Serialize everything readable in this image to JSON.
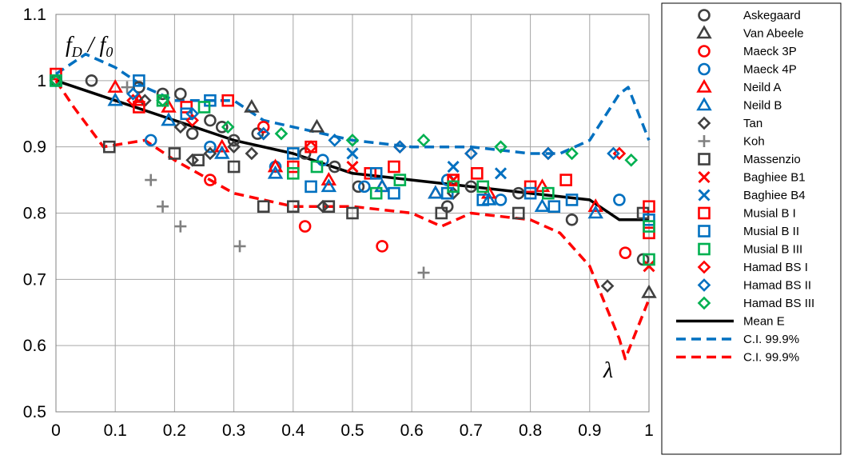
{
  "chart_data": {
    "type": "scatter",
    "xlim": [
      0,
      1
    ],
    "ylim": [
      0.5,
      1.1
    ],
    "x_ticks": [
      "0",
      "0.1",
      "0.2",
      "0.3",
      "0.4",
      "0.5",
      "0.6",
      "0.7",
      "0.8",
      "0.9",
      "1"
    ],
    "y_ticks": [
      "0.5",
      "0.6",
      "0.7",
      "0.8",
      "0.9",
      "1",
      "1.1"
    ],
    "grid": true,
    "legend_position": "right",
    "annotations": {
      "ylabel_left": "f",
      "ylabel_sub1": "D",
      "ylabel_mid": " / f",
      "ylabel_sub2": "0",
      "xlabel": "λ"
    },
    "series": [
      {
        "name": "Askegaard",
        "marker": "circle",
        "color": "#404040",
        "points": [
          [
            0,
            1.0
          ],
          [
            0.06,
            1.0
          ],
          [
            0.14,
            0.99
          ],
          [
            0.18,
            0.98
          ],
          [
            0.21,
            0.98
          ],
          [
            0.23,
            0.92
          ],
          [
            0.26,
            0.94
          ],
          [
            0.28,
            0.93
          ],
          [
            0.3,
            0.91
          ],
          [
            0.34,
            0.92
          ],
          [
            0.42,
            0.89
          ],
          [
            0.47,
            0.87
          ],
          [
            0.51,
            0.84
          ],
          [
            0.66,
            0.81
          ],
          [
            0.7,
            0.84
          ],
          [
            0.78,
            0.83
          ],
          [
            0.87,
            0.79
          ],
          [
            0.99,
            0.73
          ]
        ]
      },
      {
        "name": "Van Abeele",
        "marker": "triangle",
        "color": "#404040",
        "points": [
          [
            0.33,
            0.96
          ],
          [
            0.44,
            0.93
          ],
          [
            1.0,
            0.68
          ]
        ]
      },
      {
        "name": "Maeck 3P",
        "marker": "circle",
        "color": "#ff0000",
        "points": [
          [
            0.26,
            0.85
          ],
          [
            0.35,
            0.93
          ],
          [
            0.42,
            0.78
          ],
          [
            0.55,
            0.75
          ],
          [
            0.96,
            0.74
          ]
        ]
      },
      {
        "name": "Maeck 4P",
        "marker": "circle",
        "color": "#0070c0",
        "points": [
          [
            0.16,
            0.91
          ],
          [
            0.26,
            0.9
          ],
          [
            0.37,
            0.87
          ],
          [
            0.45,
            0.88
          ],
          [
            0.52,
            0.84
          ],
          [
            0.66,
            0.85
          ],
          [
            0.75,
            0.82
          ],
          [
            0.95,
            0.82
          ]
        ]
      },
      {
        "name": "Neild A",
        "marker": "triangle",
        "color": "#ff0000",
        "points": [
          [
            0.1,
            0.99
          ],
          [
            0.14,
            0.97
          ],
          [
            0.19,
            0.96
          ],
          [
            0.28,
            0.9
          ],
          [
            0.37,
            0.87
          ],
          [
            0.46,
            0.85
          ],
          [
            0.55,
            0.84
          ],
          [
            0.64,
            0.83
          ],
          [
            0.73,
            0.83
          ],
          [
            0.82,
            0.84
          ],
          [
            0.91,
            0.81
          ]
        ]
      },
      {
        "name": "Neild B",
        "marker": "triangle",
        "color": "#0070c0",
        "points": [
          [
            0.1,
            0.97
          ],
          [
            0.19,
            0.94
          ],
          [
            0.28,
            0.89
          ],
          [
            0.37,
            0.86
          ],
          [
            0.46,
            0.84
          ],
          [
            0.55,
            0.84
          ],
          [
            0.64,
            0.83
          ],
          [
            0.73,
            0.82
          ],
          [
            0.82,
            0.81
          ],
          [
            0.91,
            0.8
          ]
        ]
      },
      {
        "name": "Tan",
        "marker": "diamond",
        "color": "#404040",
        "points": [
          [
            0.15,
            0.97
          ],
          [
            0.21,
            0.93
          ],
          [
            0.23,
            0.88
          ],
          [
            0.26,
            0.89
          ],
          [
            0.3,
            0.9
          ],
          [
            0.33,
            0.89
          ],
          [
            0.45,
            0.81
          ],
          [
            0.67,
            0.83
          ],
          [
            0.93,
            0.69
          ]
        ]
      },
      {
        "name": "Koh",
        "marker": "plus",
        "color": "#808080",
        "points": [
          [
            0.12,
            0.99
          ],
          [
            0.16,
            0.85
          ],
          [
            0.18,
            0.81
          ],
          [
            0.21,
            0.78
          ],
          [
            0.31,
            0.75
          ],
          [
            0.62,
            0.71
          ]
        ]
      },
      {
        "name": "Massenzio",
        "marker": "square",
        "color": "#404040",
        "points": [
          [
            0.09,
            0.9
          ],
          [
            0.2,
            0.89
          ],
          [
            0.24,
            0.88
          ],
          [
            0.3,
            0.87
          ],
          [
            0.35,
            0.81
          ],
          [
            0.4,
            0.81
          ],
          [
            0.46,
            0.81
          ],
          [
            0.5,
            0.8
          ],
          [
            0.65,
            0.8
          ],
          [
            0.78,
            0.8
          ],
          [
            0.99,
            0.8
          ]
        ]
      },
      {
        "name": "Baghiee B1",
        "marker": "x",
        "color": "#ff0000",
        "points": [
          [
            0.5,
            0.87
          ],
          [
            0.67,
            0.85
          ],
          [
            1.0,
            0.72
          ]
        ]
      },
      {
        "name": "Baghiee B4",
        "marker": "x",
        "color": "#0070c0",
        "points": [
          [
            0.5,
            0.89
          ],
          [
            0.67,
            0.87
          ],
          [
            0.75,
            0.86
          ]
        ]
      },
      {
        "name": "Musial B I",
        "marker": "square",
        "color": "#ff0000",
        "points": [
          [
            0.0,
            1.01
          ],
          [
            0.14,
            0.96
          ],
          [
            0.22,
            0.96
          ],
          [
            0.29,
            0.97
          ],
          [
            0.4,
            0.87
          ],
          [
            0.43,
            0.9
          ],
          [
            0.53,
            0.86
          ],
          [
            0.57,
            0.87
          ],
          [
            0.67,
            0.85
          ],
          [
            0.71,
            0.86
          ],
          [
            0.8,
            0.84
          ],
          [
            0.86,
            0.85
          ],
          [
            1.0,
            0.77
          ],
          [
            1.0,
            0.81
          ]
        ]
      },
      {
        "name": "Musial B II",
        "marker": "square",
        "color": "#0070c0",
        "points": [
          [
            0.0,
            1.0
          ],
          [
            0.14,
            1.0
          ],
          [
            0.22,
            0.95
          ],
          [
            0.26,
            0.97
          ],
          [
            0.4,
            0.89
          ],
          [
            0.43,
            0.84
          ],
          [
            0.54,
            0.86
          ],
          [
            0.57,
            0.83
          ],
          [
            0.66,
            0.83
          ],
          [
            0.72,
            0.82
          ],
          [
            0.8,
            0.83
          ],
          [
            0.84,
            0.81
          ],
          [
            0.87,
            0.82
          ],
          [
            1.0,
            0.79
          ]
        ]
      },
      {
        "name": "Musial B III",
        "marker": "square",
        "color": "#00b050",
        "points": [
          [
            0.0,
            1.0
          ],
          [
            0.18,
            0.97
          ],
          [
            0.25,
            0.96
          ],
          [
            0.4,
            0.86
          ],
          [
            0.44,
            0.87
          ],
          [
            0.54,
            0.83
          ],
          [
            0.58,
            0.85
          ],
          [
            0.67,
            0.84
          ],
          [
            0.72,
            0.84
          ],
          [
            0.83,
            0.83
          ],
          [
            1.0,
            0.73
          ],
          [
            1.0,
            0.78
          ]
        ]
      },
      {
        "name": "Hamad BS I",
        "marker": "diamond",
        "color": "#ff0000",
        "points": [
          [
            0.0,
            1.0
          ],
          [
            0.13,
            0.97
          ],
          [
            0.23,
            0.94
          ],
          [
            0.35,
            0.92
          ],
          [
            0.43,
            0.9
          ],
          [
            0.58,
            0.9
          ],
          [
            0.7,
            0.89
          ],
          [
            0.83,
            0.89
          ],
          [
            0.95,
            0.89
          ]
        ]
      },
      {
        "name": "Hamad BS II",
        "marker": "diamond",
        "color": "#0070c0",
        "points": [
          [
            0.0,
            1.0
          ],
          [
            0.13,
            0.98
          ],
          [
            0.23,
            0.95
          ],
          [
            0.35,
            0.92
          ],
          [
            0.47,
            0.91
          ],
          [
            0.58,
            0.9
          ],
          [
            0.7,
            0.89
          ],
          [
            0.83,
            0.89
          ],
          [
            0.94,
            0.89
          ]
        ]
      },
      {
        "name": "Hamad BS III",
        "marker": "diamond",
        "color": "#00b050",
        "points": [
          [
            0.0,
            1.0
          ],
          [
            0.18,
            0.97
          ],
          [
            0.29,
            0.93
          ],
          [
            0.38,
            0.92
          ],
          [
            0.5,
            0.91
          ],
          [
            0.62,
            0.91
          ],
          [
            0.75,
            0.9
          ],
          [
            0.87,
            0.89
          ],
          [
            0.97,
            0.88
          ]
        ]
      },
      {
        "name": "Mean E",
        "type": "line",
        "color": "#000000",
        "dash": "solid",
        "points": [
          [
            0,
            1.0
          ],
          [
            0.1,
            0.97
          ],
          [
            0.2,
            0.94
          ],
          [
            0.3,
            0.91
          ],
          [
            0.4,
            0.89
          ],
          [
            0.5,
            0.86
          ],
          [
            0.6,
            0.85
          ],
          [
            0.7,
            0.84
          ],
          [
            0.8,
            0.83
          ],
          [
            0.9,
            0.82
          ],
          [
            0.95,
            0.79
          ],
          [
            1.0,
            0.79
          ]
        ]
      },
      {
        "name": "C.I. 99.9%",
        "type": "line",
        "color": "#0070c0",
        "dash": "dashed",
        "points": [
          [
            0,
            1.01
          ],
          [
            0.05,
            1.04
          ],
          [
            0.1,
            1.02
          ],
          [
            0.15,
            0.99
          ],
          [
            0.2,
            0.97
          ],
          [
            0.3,
            0.97
          ],
          [
            0.35,
            0.94
          ],
          [
            0.4,
            0.93
          ],
          [
            0.5,
            0.91
          ],
          [
            0.6,
            0.9
          ],
          [
            0.7,
            0.9
          ],
          [
            0.8,
            0.89
          ],
          [
            0.85,
            0.89
          ],
          [
            0.9,
            0.91
          ],
          [
            0.95,
            0.98
          ],
          [
            0.965,
            0.99
          ],
          [
            1.0,
            0.91
          ]
        ]
      },
      {
        "name": "C.I. 99.9%",
        "type": "line",
        "color": "#ff0000",
        "dash": "dashed",
        "points": [
          [
            0,
            1.0
          ],
          [
            0.03,
            0.96
          ],
          [
            0.08,
            0.9
          ],
          [
            0.15,
            0.91
          ],
          [
            0.2,
            0.88
          ],
          [
            0.3,
            0.83
          ],
          [
            0.4,
            0.81
          ],
          [
            0.5,
            0.81
          ],
          [
            0.6,
            0.8
          ],
          [
            0.65,
            0.78
          ],
          [
            0.7,
            0.8
          ],
          [
            0.8,
            0.79
          ],
          [
            0.85,
            0.77
          ],
          [
            0.9,
            0.72
          ],
          [
            0.95,
            0.61
          ],
          [
            0.96,
            0.58
          ],
          [
            1.0,
            0.67
          ]
        ]
      }
    ]
  }
}
